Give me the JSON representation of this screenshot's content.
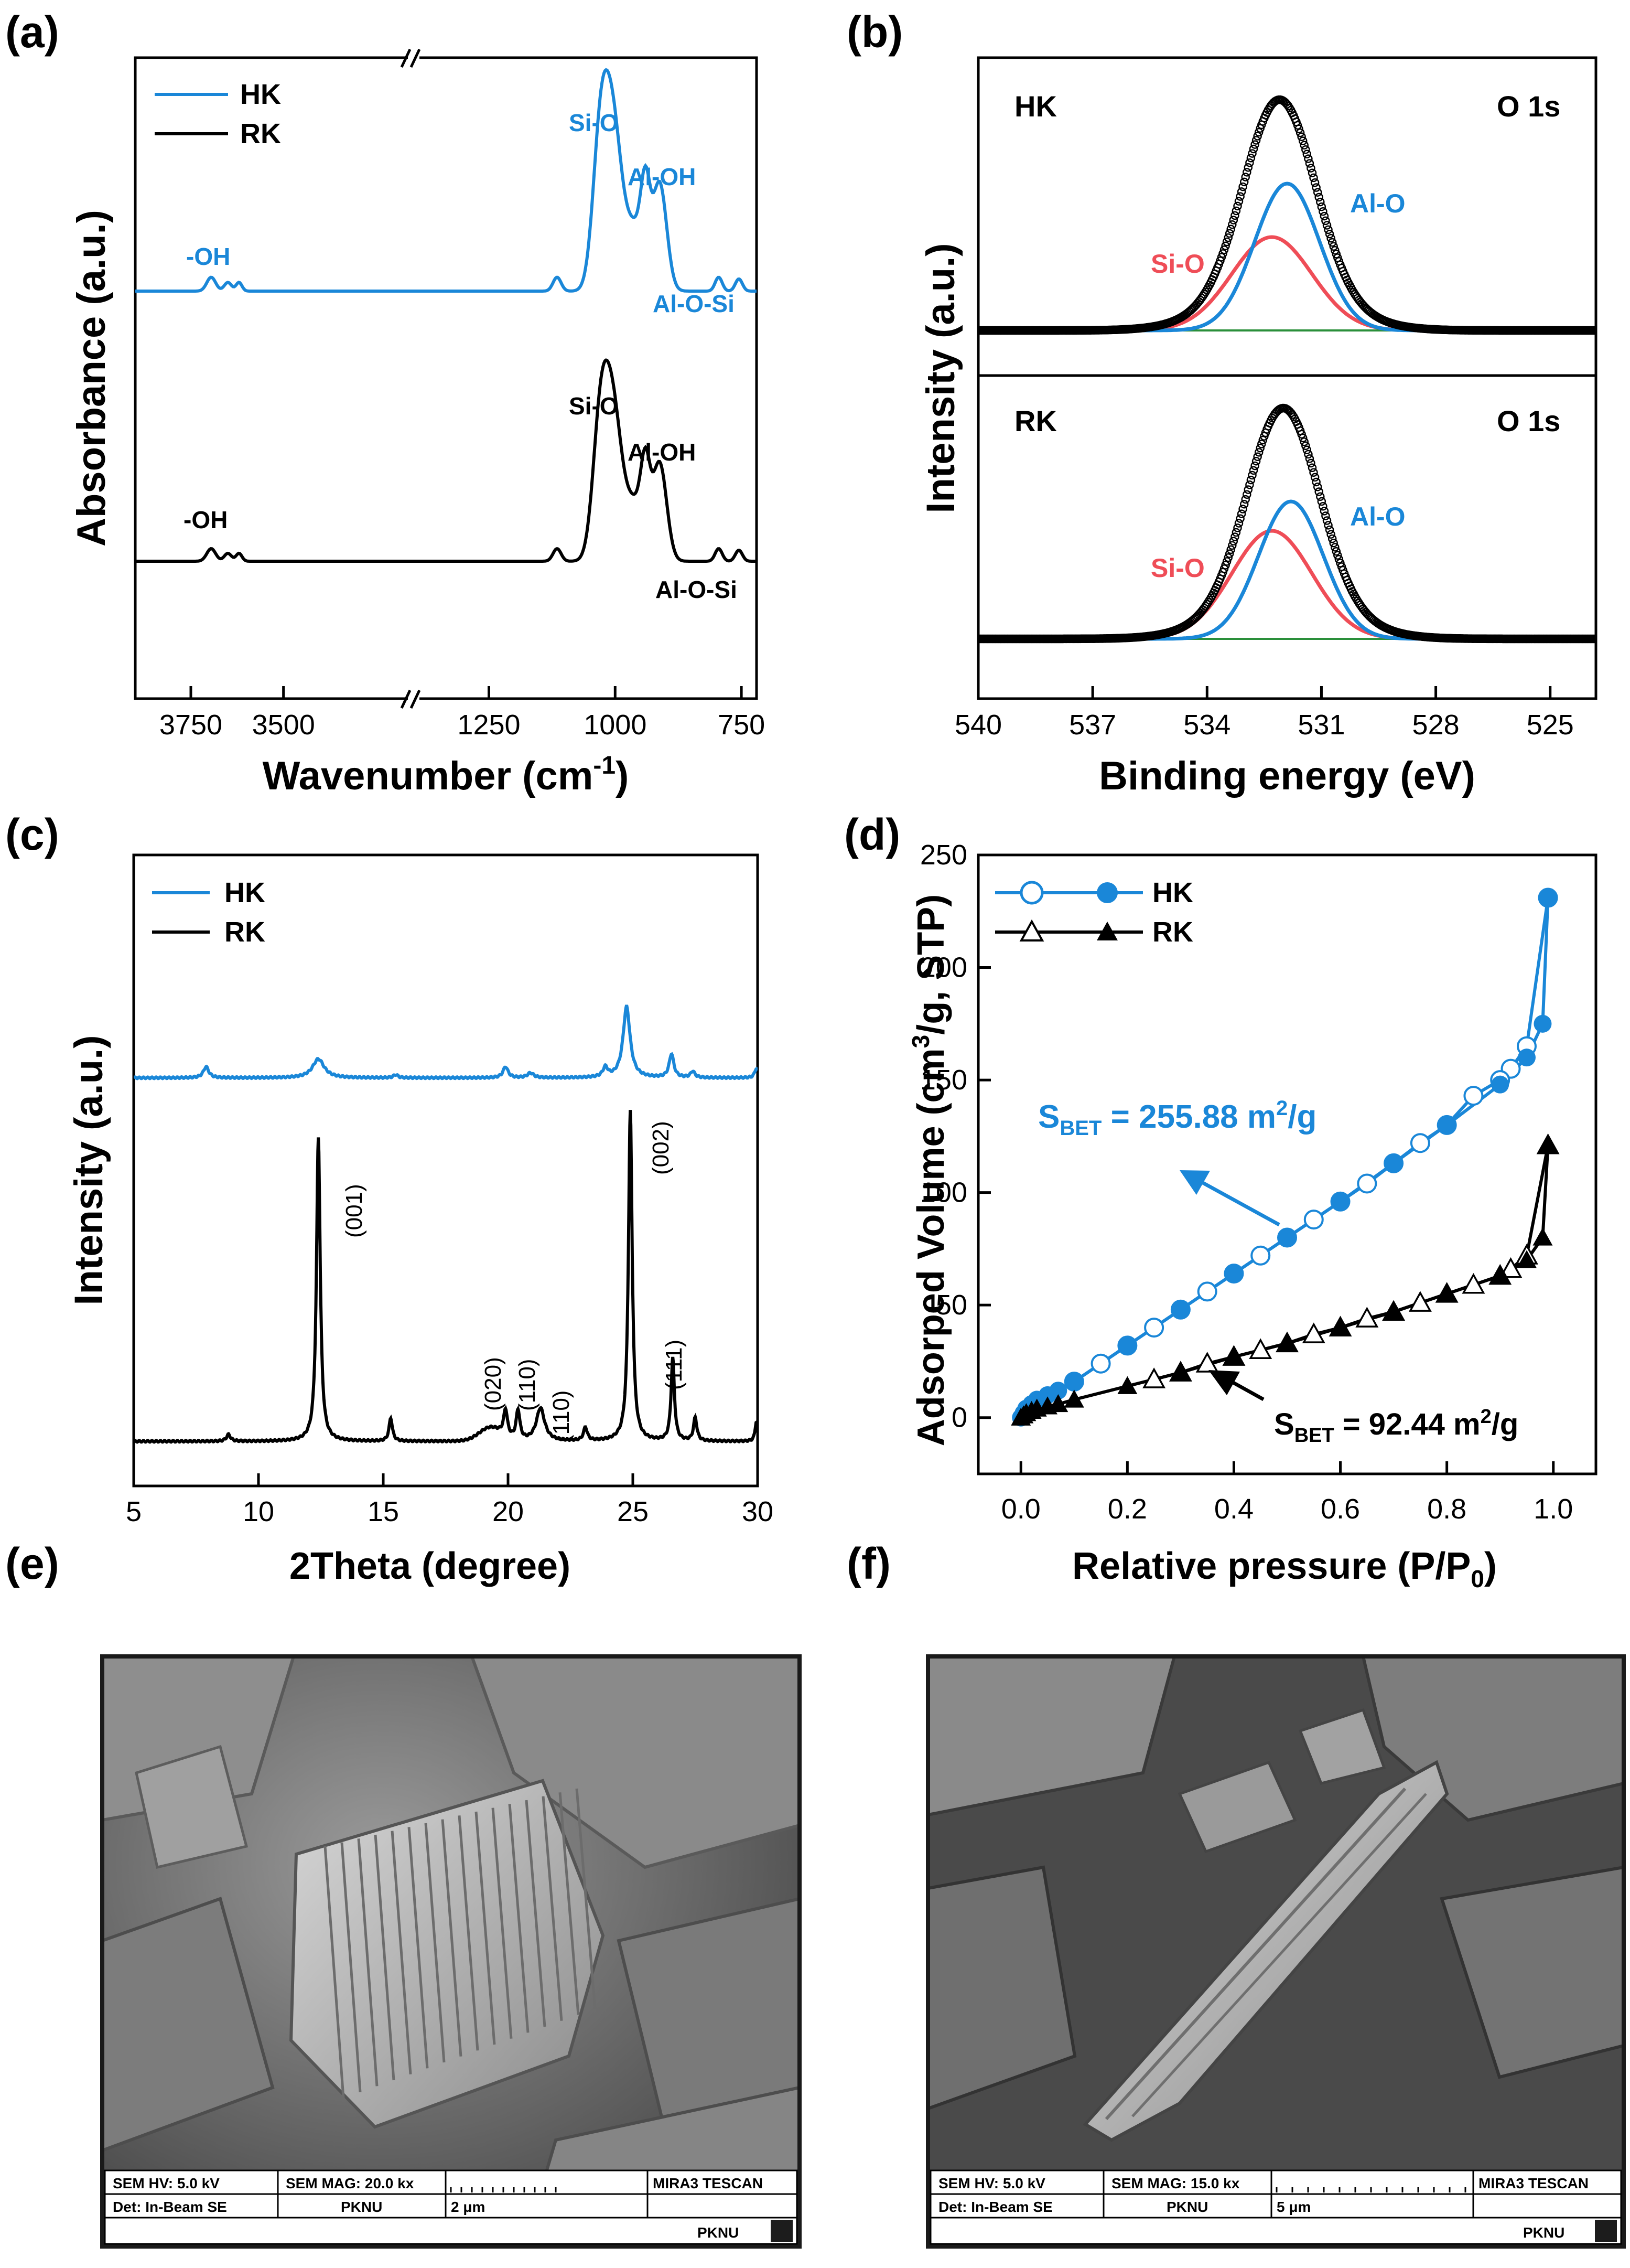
{
  "colors": {
    "blue": "#1a87d8",
    "black": "#000000",
    "red": "#ef4d57",
    "sem_bg": "#6e6e6e"
  },
  "chart_data": [
    {
      "panel": "(a)",
      "type": "line",
      "title": "",
      "xlabel": "Wavenumber (cm-1)",
      "xlabel_main": "Wavenumber (cm",
      "xlabel_sup": "-1",
      "xlabel_tail": ")",
      "ylabel": "Absorbance (a.u.)",
      "x_reversed": true,
      "axis_break": [
        3150,
        1400
      ],
      "xticks": [
        "3750",
        "3500",
        "1250",
        "1000",
        "750"
      ],
      "legend": [
        "HK",
        "RK"
      ],
      "series": [
        {
          "name": "HK",
          "color": "#1a87d8",
          "peaks_cm-1": [
            3695,
            3620,
            1115,
            1030,
            1005,
            940,
            915,
            795,
            755
          ]
        },
        {
          "name": "RK",
          "color": "#000000",
          "peaks_cm-1": [
            3695,
            3620,
            1115,
            1030,
            1005,
            940,
            915,
            795,
            755
          ]
        }
      ],
      "annotations": {
        "hk": [
          "-OH",
          "Si-O",
          "Al-OH",
          "Al-O-Si"
        ],
        "rk": [
          "-OH",
          "Si-O",
          "Al-OH",
          "Al-O-Si"
        ]
      }
    },
    {
      "panel": "(b)",
      "type": "line",
      "xlabel": "Binding energy (eV)",
      "ylabel": "Intensity (a.u.)",
      "xlim": [
        540,
        523.8
      ],
      "xticks": [
        "540",
        "537",
        "534",
        "531",
        "528",
        "525"
      ],
      "subplots": [
        {
          "sample": "HK",
          "label": "O 1s",
          "peak_eV": 532.1,
          "components": [
            {
              "name": "Al-O",
              "center_eV": 531.9,
              "color": "#1a87d8"
            },
            {
              "name": "Si-O",
              "center_eV": 532.3,
              "color": "#ef4d57"
            }
          ]
        },
        {
          "sample": "RK",
          "label": "O 1s",
          "peak_eV": 532.0,
          "components": [
            {
              "name": "Al-O",
              "center_eV": 531.8,
              "color": "#1a87d8"
            },
            {
              "name": "Si-O",
              "center_eV": 532.3,
              "color": "#ef4d57"
            }
          ]
        }
      ]
    },
    {
      "panel": "(c)",
      "type": "line",
      "xlabel": "2Theta (degree)",
      "ylabel": "Intensity (a.u.)",
      "xlim": [
        5,
        30
      ],
      "xticks": [
        "5",
        "10",
        "15",
        "20",
        "25",
        "30"
      ],
      "legend": [
        "HK",
        "RK"
      ],
      "peaks_2theta": {
        "HK": [
          7.9,
          12.4,
          15.5,
          19.9,
          20.9,
          23.9,
          24.7,
          26.6
        ],
        "RK": [
          8.8,
          12.4,
          15.3,
          19.9,
          20.4,
          21.3,
          23.1,
          24.9,
          26.6,
          27.5
        ]
      },
      "miller": [
        {
          "label": "(001)",
          "two_theta": 12.4
        },
        {
          "label": "(020)",
          "two_theta": 19.9
        },
        {
          "label": "(110)",
          "two_theta": 20.4
        },
        {
          "label": "(110)",
          "two_theta": 21.3
        },
        {
          "label": "(002)",
          "two_theta": 24.9
        },
        {
          "label": "(111)",
          "two_theta": 26.6
        }
      ]
    },
    {
      "panel": "(d)",
      "type": "scatter",
      "xlabel": "Relative pressure (P/P0)",
      "xlabel_main": "Relative pressure (P/P",
      "xlabel_sub": "0",
      "xlabel_tail": ")",
      "ylabel": "Adsorped Volume (cm3/g, STP)",
      "ylabel_a": "Adsorped Volume (cm",
      "ylabel_sup": "3",
      "ylabel_b": "/g, STP)",
      "xlim": [
        -0.08,
        1.08
      ],
      "ylim": [
        -25,
        250
      ],
      "xticks": [
        "0.0",
        "0.2",
        "0.4",
        "0.6",
        "0.8",
        "1.0"
      ],
      "yticks": [
        "0",
        "50",
        "100",
        "150",
        "200",
        "250"
      ],
      "series": [
        {
          "name": "HK",
          "color": "#1a87d8",
          "adsorption": {
            "x": [
              0.0,
              0.005,
              0.01,
              0.02,
              0.03,
              0.05,
              0.07,
              0.1,
              0.2,
              0.3,
              0.4,
              0.5,
              0.6,
              0.7,
              0.8,
              0.9,
              0.95,
              0.98,
              0.99
            ],
            "y": [
              0,
              2,
              4,
              6,
              8,
              10,
              12,
              16,
              32,
              48,
              64,
              80,
              96,
              113,
              130,
              148,
              160,
              175,
              231
            ]
          },
          "desorption": {
            "x": [
              0.99,
              0.95,
              0.92,
              0.9,
              0.85,
              0.8,
              0.75,
              0.7,
              0.65,
              0.6,
              0.55,
              0.5,
              0.45,
              0.4,
              0.35,
              0.3,
              0.25,
              0.2,
              0.15,
              0.1
            ],
            "y": [
              231,
              165,
              155,
              150,
              143,
              130,
              122,
              113,
              104,
              96,
              88,
              80,
              72,
              64,
              56,
              48,
              40,
              32,
              24,
              16
            ]
          }
        },
        {
          "name": "RK",
          "color": "#000000",
          "adsorption": {
            "x": [
              0.0,
              0.005,
              0.01,
              0.02,
              0.03,
              0.05,
              0.07,
              0.1,
              0.2,
              0.3,
              0.4,
              0.5,
              0.6,
              0.7,
              0.8,
              0.9,
              0.95,
              0.98,
              0.99
            ],
            "y": [
              0,
              1,
              2,
              3,
              4,
              5,
              6,
              8,
              14,
              20,
              27,
              33,
              40,
              47,
              55,
              63,
              70,
              80,
              121
            ]
          },
          "desorption": {
            "x": [
              0.99,
              0.95,
              0.92,
              0.9,
              0.85,
              0.8,
              0.75,
              0.7,
              0.65,
              0.6,
              0.55,
              0.5,
              0.45,
              0.4,
              0.35,
              0.3,
              0.25
            ],
            "y": [
              121,
              72,
              66,
              63,
              59,
              55,
              51,
              47,
              44,
              40,
              37,
              33,
              30,
              27,
              24,
              20,
              17
            ]
          }
        }
      ],
      "annotations": [
        {
          "name": "HK",
          "text_main": "S",
          "text_sub": "BET",
          "text_value": " = 255.88 m",
          "text_sup": "2",
          "text_unit": "/g",
          "full": "SBET = 255.88 m2/g"
        },
        {
          "name": "RK",
          "text_main": "S",
          "text_sub": "BET",
          "text_value": " = 92.44 m",
          "text_sup": "2",
          "text_unit": "/g",
          "full": "SBET = 92.44 m2/g"
        }
      ]
    }
  ],
  "panels": {
    "a": "(a)",
    "b": "(b)",
    "c": "(c)",
    "d": "(d)",
    "e": "(e)",
    "f": "(f)"
  },
  "sem_e": {
    "hv": "SEM HV: 5.0 kV",
    "mag": "SEM MAG: 20.0 kx",
    "det": "Det: In-Beam SE",
    "org": "PKNU",
    "scale": "2 μm",
    "brand": "MIRA3 TESCAN",
    "logo": "PKNU"
  },
  "sem_f": {
    "hv": "SEM HV: 5.0 kV",
    "mag": "SEM MAG: 15.0 kx",
    "det": "Det: In-Beam SE",
    "org": "PKNU",
    "scale": "5 μm",
    "brand": "MIRA3 TESCAN",
    "logo": "PKNU"
  }
}
